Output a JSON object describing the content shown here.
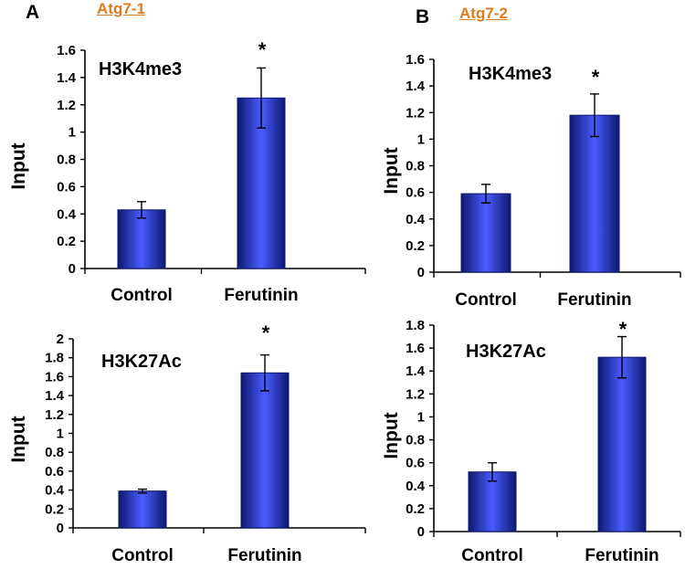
{
  "panels": [
    {
      "letter": "A",
      "link": "Atg7-1"
    },
    {
      "letter": "B",
      "link": "Atg7-2"
    }
  ],
  "colors": {
    "bar_dark": "#0d1870",
    "bar_light": "#4a5cff",
    "axis": "#000000",
    "panel_link": "#e07a20"
  },
  "chart_data": [
    {
      "type": "bar",
      "panel": "A",
      "label": "H3K4me3",
      "categories": [
        "Control",
        "Ferutinin"
      ],
      "values": [
        0.43,
        1.25
      ],
      "errors": [
        0.06,
        0.22
      ],
      "significance": [
        "",
        "*"
      ],
      "ylabel": "Input",
      "ylim": [
        0,
        1.6
      ],
      "yticks": [
        0,
        0.2,
        0.4,
        0.6,
        0.8,
        1,
        1.2,
        1.4,
        1.6
      ],
      "ytick_labels": [
        "0",
        "0.2",
        "0.4",
        "0.6",
        "0.8",
        "1",
        "1.2",
        "1.4",
        "1.6"
      ],
      "grid": false
    },
    {
      "type": "bar",
      "panel": "B",
      "label": "H3K4me3",
      "categories": [
        "Control",
        "Ferutinin"
      ],
      "values": [
        0.59,
        1.18
      ],
      "errors": [
        0.07,
        0.16
      ],
      "significance": [
        "",
        "*"
      ],
      "ylabel": "Input",
      "ylim": [
        0,
        1.6
      ],
      "yticks": [
        0,
        0.2,
        0.4,
        0.6,
        0.8,
        1,
        1.2,
        1.4,
        1.6
      ],
      "ytick_labels": [
        "0",
        "0.2",
        "0.4",
        "0.6",
        "0.8",
        "1",
        "1.2",
        "1.4",
        "1.6"
      ],
      "grid": false
    },
    {
      "type": "bar",
      "panel": "A",
      "label": "H3K27Ac",
      "categories": [
        "Control",
        "Ferutinin"
      ],
      "values": [
        0.39,
        1.64
      ],
      "errors": [
        0.02,
        0.19
      ],
      "significance": [
        "",
        "*"
      ],
      "ylabel": "Input",
      "ylim": [
        0,
        2
      ],
      "yticks": [
        0,
        0.2,
        0.4,
        0.6,
        0.8,
        1,
        1.2,
        1.4,
        1.6,
        1.8,
        2
      ],
      "ytick_labels": [
        "0",
        "0.2",
        "0.4",
        "0.6",
        "0.8",
        "1",
        "1.2",
        "1.4",
        "1.6",
        "1.8",
        "2"
      ],
      "grid": false
    },
    {
      "type": "bar",
      "panel": "B",
      "label": "H3K27Ac",
      "categories": [
        "Control",
        "Ferutinin"
      ],
      "values": [
        0.52,
        1.52
      ],
      "errors": [
        0.08,
        0.18
      ],
      "significance": [
        "",
        "*"
      ],
      "ylabel": "Input",
      "ylim": [
        0,
        1.8
      ],
      "yticks": [
        0,
        0.2,
        0.4,
        0.6,
        0.8,
        1,
        1.2,
        1.4,
        1.6,
        1.8
      ],
      "ytick_labels": [
        "0",
        "0.2",
        "0.4",
        "0.6",
        "0.8",
        "1",
        "1.2",
        "1.4",
        "1.6",
        "1.8"
      ],
      "grid": false
    }
  ]
}
